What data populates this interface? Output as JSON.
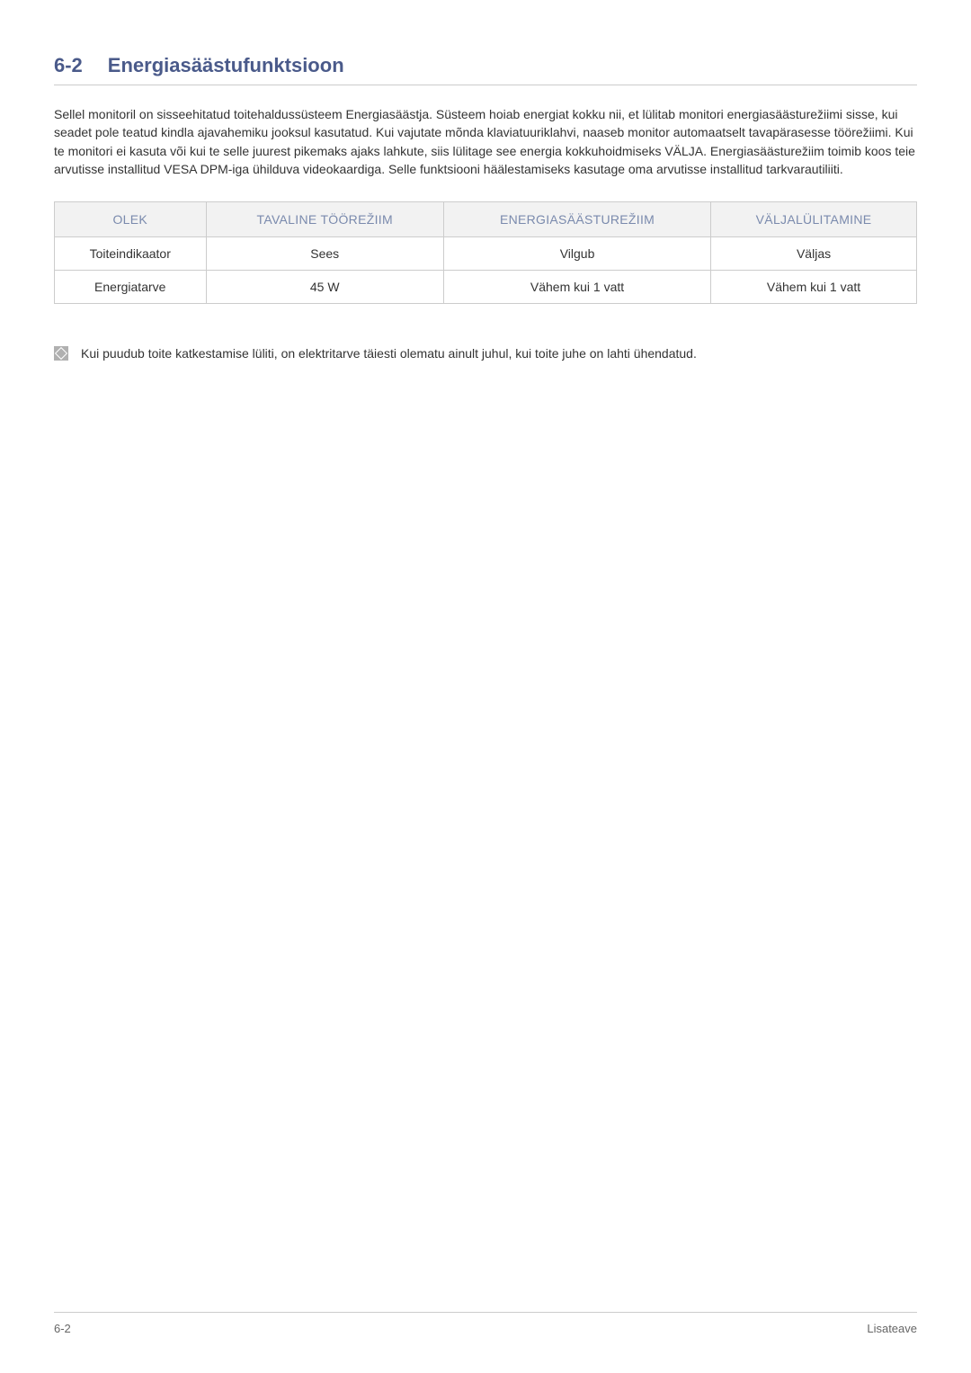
{
  "section": {
    "number": "6-2",
    "title": "Energiasäästufunktsioon"
  },
  "paragraph": "Sellel monitoril on sisseehitatud toitehaldussüsteem Energiasäästja. Süsteem hoiab energiat kokku nii, et lülitab monitori energiasäästurežiimi sisse, kui seadet pole teatud kindla ajavahemiku jooksul kasutatud. Kui vajutate mõnda klaviatuuriklahvi, naaseb monitor automaatselt tavapärasesse töörežiimi. Kui te monitori ei kasuta või kui te selle juurest pikemaks ajaks lahkute, siis lülitage see energia kokkuhoidmiseks VÄLJA. Energiasäästurežiim toimib koos teie arvutisse installitud VESA DPM-iga ühilduva videokaardiga. Selle funktsiooni häälestamiseks kasutage oma arvutisse installitud tarkvarautiliiti.",
  "table": {
    "headers": {
      "c0": "OLEK",
      "c1": "TAVALINE TÖÖREŽIIM",
      "c2": "ENERGIASÄÄSTUREŽIIM",
      "c3": "VÄLJALÜLITAMINE"
    },
    "rows": [
      {
        "c0": "Toiteindikaator",
        "c1": "Sees",
        "c2": "Vilgub",
        "c3": "Väljas"
      },
      {
        "c0": "Energiatarve",
        "c1": "45 W",
        "c2": "Vähem kui 1 vatt",
        "c3": "Vähem kui 1 vatt"
      }
    ]
  },
  "note": "Kui puudub toite katkestamise lüliti, on elektritarve täiesti olematu ainult juhul, kui toite juhe on lahti ühendatud.",
  "footer": {
    "left": "6-2",
    "right": "Lisateave"
  }
}
